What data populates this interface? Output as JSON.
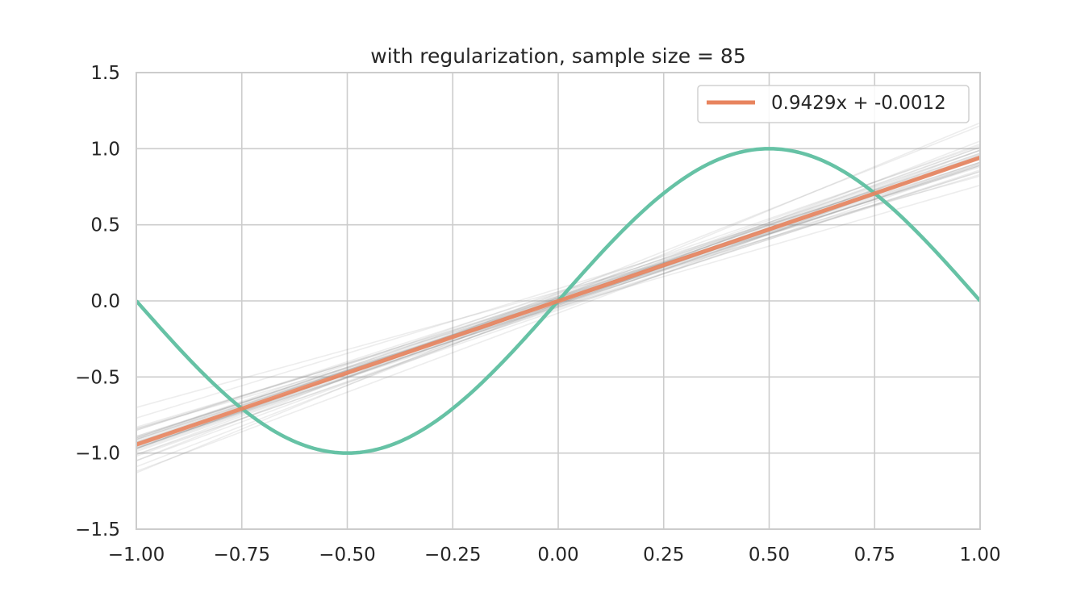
{
  "chart_data": {
    "type": "line",
    "title": "with regularization, sample size = 85",
    "xlabel": "",
    "ylabel": "",
    "xlim": [
      -1.0,
      1.0
    ],
    "ylim": [
      -1.5,
      1.5
    ],
    "x_ticks": [
      "−1.00",
      "−0.75",
      "−0.50",
      "−0.25",
      "0.00",
      "0.25",
      "0.50",
      "0.75",
      "1.00"
    ],
    "y_ticks": [
      "−1.5",
      "−1.0",
      "−0.5",
      "0.0",
      "0.5",
      "1.0",
      "1.5"
    ],
    "grid": true,
    "legend": {
      "placement": "top-right",
      "entries": [
        "0.9429x + -0.0012"
      ]
    },
    "series": [
      {
        "name": "0.9429x + -0.0012",
        "kind": "fit",
        "color": "#e8845e",
        "slope": 0.9429,
        "intercept": -0.0012,
        "x": [
          -1.0,
          1.0
        ],
        "y": [
          -0.9441,
          0.9417
        ]
      },
      {
        "kind": "target",
        "color": "#66c2a5",
        "function": "sin(pi*x)",
        "x": [
          -1.0,
          -0.75,
          -0.5,
          -0.25,
          0.0,
          0.25,
          0.5,
          0.75,
          1.0
        ],
        "y": [
          0.0,
          -0.7071,
          -1.0,
          -0.7071,
          0.0,
          0.7071,
          1.0,
          0.7071,
          0.0
        ]
      },
      {
        "kind": "samples",
        "color": "#7f7f7f",
        "lines": [
          {
            "slope": 0.93,
            "intercept": 0.01
          },
          {
            "slope": 0.96,
            "intercept": -0.02
          },
          {
            "slope": 0.89,
            "intercept": 0.0
          },
          {
            "slope": 1.0,
            "intercept": 0.03
          },
          {
            "slope": 0.98,
            "intercept": -0.04
          },
          {
            "slope": 0.9,
            "intercept": 0.05
          },
          {
            "slope": 0.94,
            "intercept": -0.01
          },
          {
            "slope": 0.92,
            "intercept": 0.02
          },
          {
            "slope": 1.02,
            "intercept": -0.03
          },
          {
            "slope": 0.87,
            "intercept": -0.02
          },
          {
            "slope": 0.95,
            "intercept": 0.04
          },
          {
            "slope": 0.91,
            "intercept": -0.05
          },
          {
            "slope": 0.97,
            "intercept": 0.0
          },
          {
            "slope": 0.93,
            "intercept": -0.03
          },
          {
            "slope": 0.99,
            "intercept": 0.02
          },
          {
            "slope": 0.88,
            "intercept": 0.03
          },
          {
            "slope": 0.95,
            "intercept": -0.06
          },
          {
            "slope": 0.9,
            "intercept": -0.01
          },
          {
            "slope": 0.96,
            "intercept": 0.06
          },
          {
            "slope": 0.94,
            "intercept": 0.01
          },
          {
            "slope": 0.92,
            "intercept": -0.02
          },
          {
            "slope": 1.01,
            "intercept": 0.0
          },
          {
            "slope": 0.86,
            "intercept": 0.02
          },
          {
            "slope": 0.97,
            "intercept": -0.02
          },
          {
            "slope": 0.93,
            "intercept": 0.03
          },
          {
            "slope": 0.91,
            "intercept": 0.0
          },
          {
            "slope": 0.98,
            "intercept": 0.01
          },
          {
            "slope": 0.89,
            "intercept": -0.04
          },
          {
            "slope": 0.95,
            "intercept": 0.02
          },
          {
            "slope": 0.94,
            "intercept": -0.03
          },
          {
            "slope": 0.76,
            "intercept": 0.06
          },
          {
            "slope": 1.07,
            "intercept": -0.02
          },
          {
            "slope": 0.83,
            "intercept": 0.0
          },
          {
            "slope": 1.15,
            "intercept": 0.02
          },
          {
            "slope": 0.8,
            "intercept": -0.04
          },
          {
            "slope": 1.1,
            "intercept": 0.05
          },
          {
            "slope": 0.85,
            "intercept": 0.08
          },
          {
            "slope": 1.04,
            "intercept": -0.08
          }
        ]
      }
    ]
  }
}
